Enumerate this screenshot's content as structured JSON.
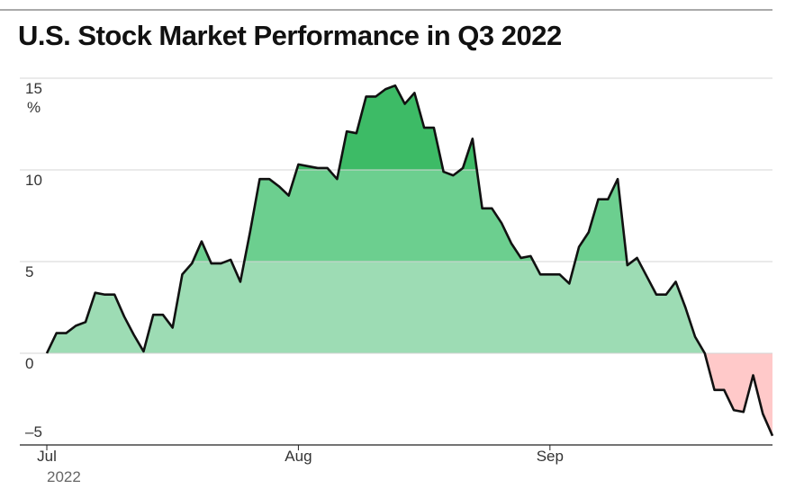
{
  "chart_data": {
    "type": "area",
    "title": "U.S. Stock Market Performance in Q3 2022",
    "y_unit": "%",
    "x_sublabel": "2022",
    "categories": [
      "Jul",
      null,
      null,
      null,
      null,
      null,
      null,
      null,
      null,
      null,
      null,
      null,
      null,
      null,
      null,
      null,
      null,
      null,
      null,
      null,
      null,
      null,
      null,
      null,
      null,
      null,
      "Aug",
      null,
      null,
      null,
      null,
      null,
      null,
      null,
      null,
      null,
      null,
      null,
      null,
      null,
      null,
      null,
      null,
      null,
      null,
      null,
      null,
      null,
      null,
      null,
      null,
      null,
      "Sep",
      null,
      null,
      null,
      null,
      null,
      null,
      null,
      null,
      null,
      null,
      null,
      null,
      null,
      null,
      null,
      null,
      null,
      null,
      null,
      null,
      null,
      null,
      null
    ],
    "values": [
      0,
      1.1,
      1.1,
      1.5,
      1.7,
      3.3,
      3.2,
      3.2,
      2.0,
      1.0,
      0.1,
      2.1,
      2.1,
      1.4,
      4.3,
      4.9,
      6.1,
      4.9,
      4.9,
      5.1,
      3.9,
      6.6,
      9.5,
      9.5,
      9.1,
      8.6,
      10.3,
      10.2,
      10.1,
      10.1,
      9.5,
      12.1,
      12.0,
      14.0,
      14.0,
      14.4,
      14.6,
      13.6,
      14.2,
      12.3,
      12.3,
      9.9,
      9.7,
      10.1,
      11.7,
      7.9,
      7.9,
      7.1,
      6.0,
      5.2,
      5.3,
      4.3,
      4.3,
      4.3,
      3.8,
      5.8,
      6.6,
      8.4,
      8.4,
      9.5,
      4.8,
      5.2,
      4.2,
      3.2,
      3.2,
      3.9,
      2.5,
      0.9,
      0.0,
      -2.0,
      -2.0,
      -3.1,
      -3.2,
      -1.2,
      -3.3,
      -4.5
    ],
    "line_color": "#111111",
    "band_colors": [
      "#ffc9c9",
      "#9ddcb4",
      "#6ccf8f",
      "#3dbb66"
    ],
    "ylim": [
      -5,
      15
    ],
    "yticks": [
      {
        "value": -5,
        "label": "–5"
      },
      0,
      5,
      10,
      15
    ],
    "grid": true
  }
}
